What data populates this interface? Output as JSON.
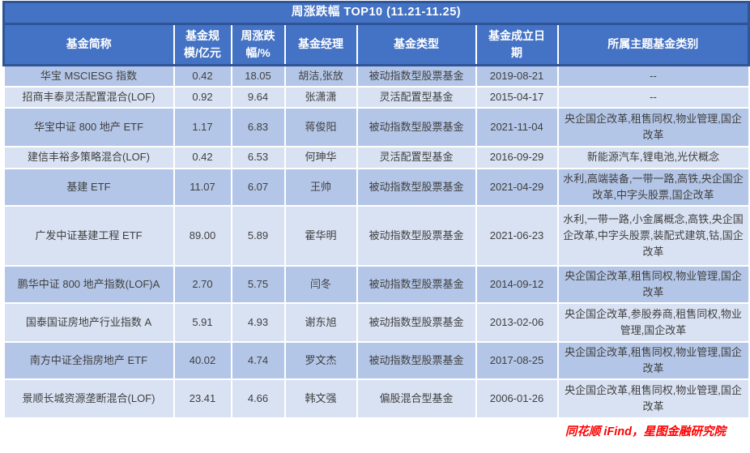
{
  "title": "周涨跌幅 TOP10 (11.21-11.25)",
  "footer": "同花顺 iFind，星图金融研究院",
  "colors": {
    "header_bg": "#4472C4",
    "header_border": "#2F5597",
    "band_dark": "#B4C6E7",
    "band_light": "#D9E2F3",
    "footer_red": "#FE0000"
  },
  "chart_data": {
    "type": "table",
    "title": "周涨跌幅 TOP10 (11.21-11.25)",
    "columns": [
      "基金简称",
      "基金规模/亿元",
      "周涨跌幅/%",
      "基金经理",
      "基金类型",
      "基金成立日期",
      "所属主题基金类别"
    ],
    "rows": [
      {
        "name": "华宝 MSCIESG 指数",
        "scale": "0.42",
        "change": "18.05",
        "manager": "胡洁,张放",
        "type": "被动指数型股票基金",
        "date": "2019-08-21",
        "themes": "--"
      },
      {
        "name": "招商丰泰灵活配置混合(LOF)",
        "scale": "0.92",
        "change": "9.64",
        "manager": "张潇潇",
        "type": "灵活配置型基金",
        "date": "2015-04-17",
        "themes": "--"
      },
      {
        "name": "华宝中证 800 地产 ETF",
        "scale": "1.17",
        "change": "6.83",
        "manager": "蒋俊阳",
        "type": "被动指数型股票基金",
        "date": "2021-11-04",
        "themes": "央企国企改革,租售同权,物业管理,国企改革"
      },
      {
        "name": "建信丰裕多策略混合(LOF)",
        "scale": "0.42",
        "change": "6.53",
        "manager": "何珅华",
        "type": "灵活配置型基金",
        "date": "2016-09-29",
        "themes": "新能源汽车,锂电池,光伏概念"
      },
      {
        "name": "基建 ETF",
        "scale": "11.07",
        "change": "6.07",
        "manager": "王帅",
        "type": "被动指数型股票基金",
        "date": "2021-04-29",
        "themes": "水利,高端装备,一带一路,高铁,央企国企改革,中字头股票,国企改革"
      },
      {
        "name": "广发中证基建工程 ETF",
        "scale": "89.00",
        "change": "5.89",
        "manager": "霍华明",
        "type": "被动指数型股票基金",
        "date": "2021-06-23",
        "themes": "水利,一带一路,小金属概念,高铁,央企国企改革,中字头股票,装配式建筑,钴,国企改革"
      },
      {
        "name": "鹏华中证 800 地产指数(LOF)A",
        "scale": "2.70",
        "change": "5.75",
        "manager": "闫冬",
        "type": "被动指数型股票基金",
        "date": "2014-09-12",
        "themes": "央企国企改革,租售同权,物业管理,国企改革"
      },
      {
        "name": "国泰国证房地产行业指数 A",
        "scale": "5.91",
        "change": "4.93",
        "manager": "谢东旭",
        "type": "被动指数型股票基金",
        "date": "2013-02-06",
        "themes": "央企国企改革,参股券商,租售同权,物业管理,国企改革"
      },
      {
        "name": "南方中证全指房地产 ETF",
        "scale": "40.02",
        "change": "4.74",
        "manager": "罗文杰",
        "type": "被动指数型股票基金",
        "date": "2017-08-25",
        "themes": "央企国企改革,租售同权,物业管理,国企改革"
      },
      {
        "name": "景顺长城资源垄断混合(LOF)",
        "scale": "23.41",
        "change": "4.66",
        "manager": "韩文强",
        "type": "偏股混合型基金",
        "date": "2006-01-26",
        "themes": "央企国企改革,租售同权,物业管理,国企改革"
      }
    ]
  }
}
